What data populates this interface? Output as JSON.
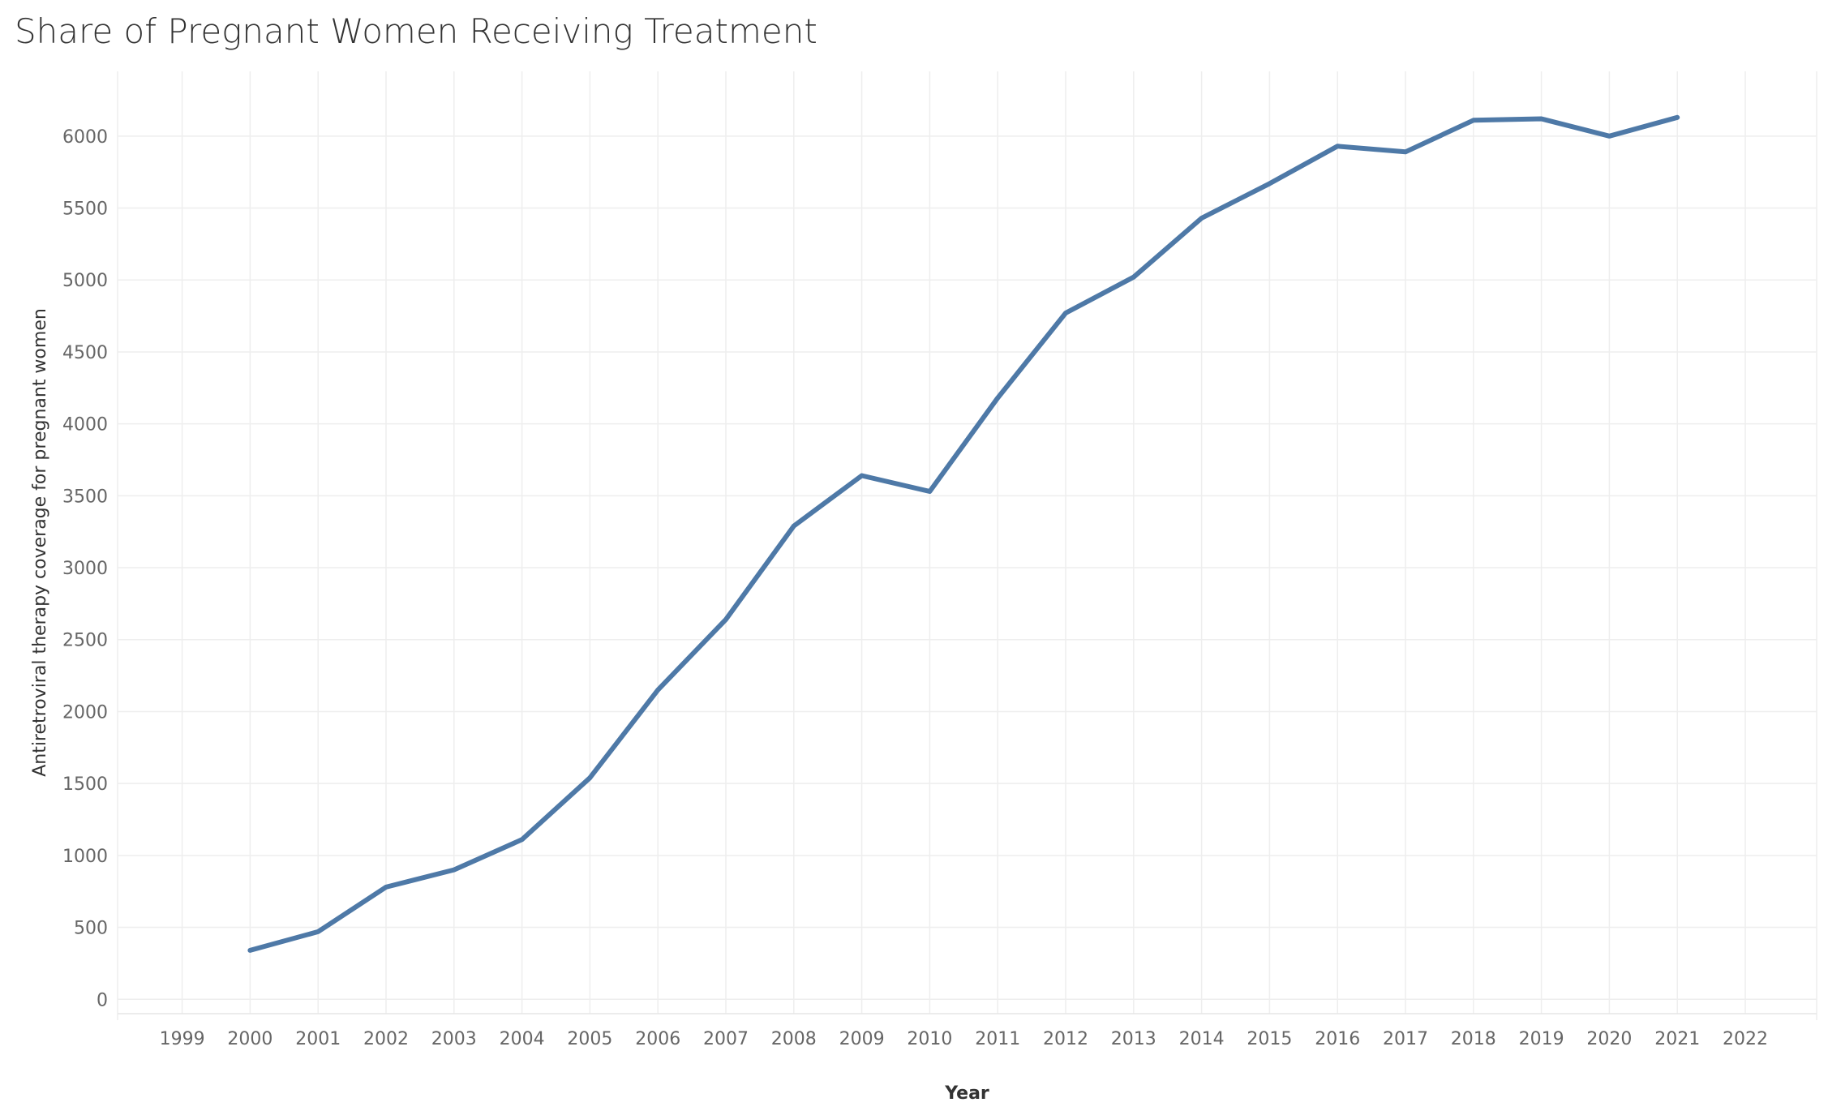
{
  "chart_data": {
    "type": "line",
    "title": "Share of Pregnant Women Receiving Treatment",
    "xlabel": "Year",
    "ylabel": "Antiretroviral therapy coverage for pregnant women",
    "x_ticks": [
      "1999",
      "2000",
      "2001",
      "2002",
      "2003",
      "2004",
      "2005",
      "2006",
      "2007",
      "2008",
      "2009",
      "2010",
      "2011",
      "2012",
      "2013",
      "2014",
      "2015",
      "2016",
      "2017",
      "2018",
      "2019",
      "2020",
      "2021",
      "2022"
    ],
    "y_ticks": [
      "0",
      "500",
      "1000",
      "1500",
      "2000",
      "2500",
      "3000",
      "3500",
      "4000",
      "4500",
      "5000",
      "5500",
      "6000"
    ],
    "xlim": [
      1998.05,
      2023.05
    ],
    "ylim": [
      -100,
      6450
    ],
    "grid": true,
    "series": [
      {
        "color": "#4e79a7",
        "x": [
          2000,
          2001,
          2002,
          2003,
          2004,
          2005,
          2006,
          2007,
          2008,
          2009,
          2010,
          2011,
          2012,
          2013,
          2014,
          2015,
          2016,
          2017,
          2018,
          2019,
          2020,
          2021
        ],
        "values": [
          340,
          470,
          780,
          900,
          1110,
          1540,
          2150,
          2640,
          3290,
          3640,
          3530,
          4180,
          4770,
          5020,
          5430,
          5670,
          5930,
          5890,
          6110,
          6120,
          6000,
          6130
        ]
      }
    ]
  }
}
